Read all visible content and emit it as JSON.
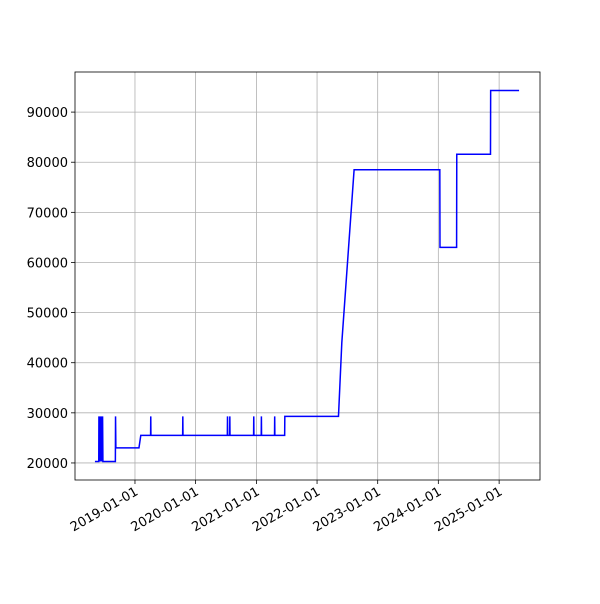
{
  "chart_data": {
    "type": "line",
    "x": [
      "2018-05-05",
      "2018-05-28",
      "2018-05-29",
      "2018-05-30",
      "2018-06-05",
      "2018-06-08",
      "2018-06-12",
      "2018-06-15",
      "2018-06-20",
      "2018-06-22",
      "2018-09-05",
      "2018-09-06",
      "2018-09-08",
      "2019-01-25",
      "2019-02-05",
      "2019-04-05",
      "2019-04-06",
      "2019-04-07",
      "2019-10-15",
      "2019-10-16",
      "2019-10-17",
      "2020-07-10",
      "2020-07-11",
      "2020-07-12",
      "2020-07-24",
      "2020-07-25",
      "2020-07-26",
      "2020-12-15",
      "2020-12-16",
      "2020-12-17",
      "2021-01-30",
      "2021-01-31",
      "2021-02-01",
      "2021-04-20",
      "2021-04-21",
      "2021-04-22",
      "2021-06-20",
      "2021-06-21",
      "2022-05-10",
      "2022-05-30",
      "2022-08-12",
      "2024-01-10",
      "2024-01-11",
      "2024-04-20",
      "2024-04-21",
      "2024-11-10",
      "2024-11-11",
      "2025-05-01"
    ],
    "values": [
      20300,
      20300,
      29300,
      20300,
      29300,
      20300,
      29300,
      20300,
      29300,
      20300,
      20300,
      29300,
      23000,
      23000,
      25500,
      25500,
      29300,
      25500,
      25500,
      29300,
      25500,
      25500,
      29300,
      25500,
      25500,
      29300,
      25500,
      25500,
      29300,
      25500,
      25500,
      29300,
      25500,
      25500,
      29300,
      25500,
      25500,
      29300,
      29300,
      44000,
      78500,
      78500,
      63000,
      63000,
      81600,
      81600,
      94300,
      94300
    ],
    "color": "#0000ff",
    "xlim": [
      "2018-01-05",
      "2025-09-04"
    ],
    "xticks": [
      "2019-01-01",
      "2020-01-01",
      "2021-01-01",
      "2022-01-01",
      "2023-01-01",
      "2024-01-01",
      "2025-01-01"
    ],
    "ylim": [
      16600,
      98000
    ],
    "yticks": [
      20000,
      30000,
      40000,
      50000,
      60000,
      70000,
      80000,
      90000
    ],
    "grid": true
  }
}
